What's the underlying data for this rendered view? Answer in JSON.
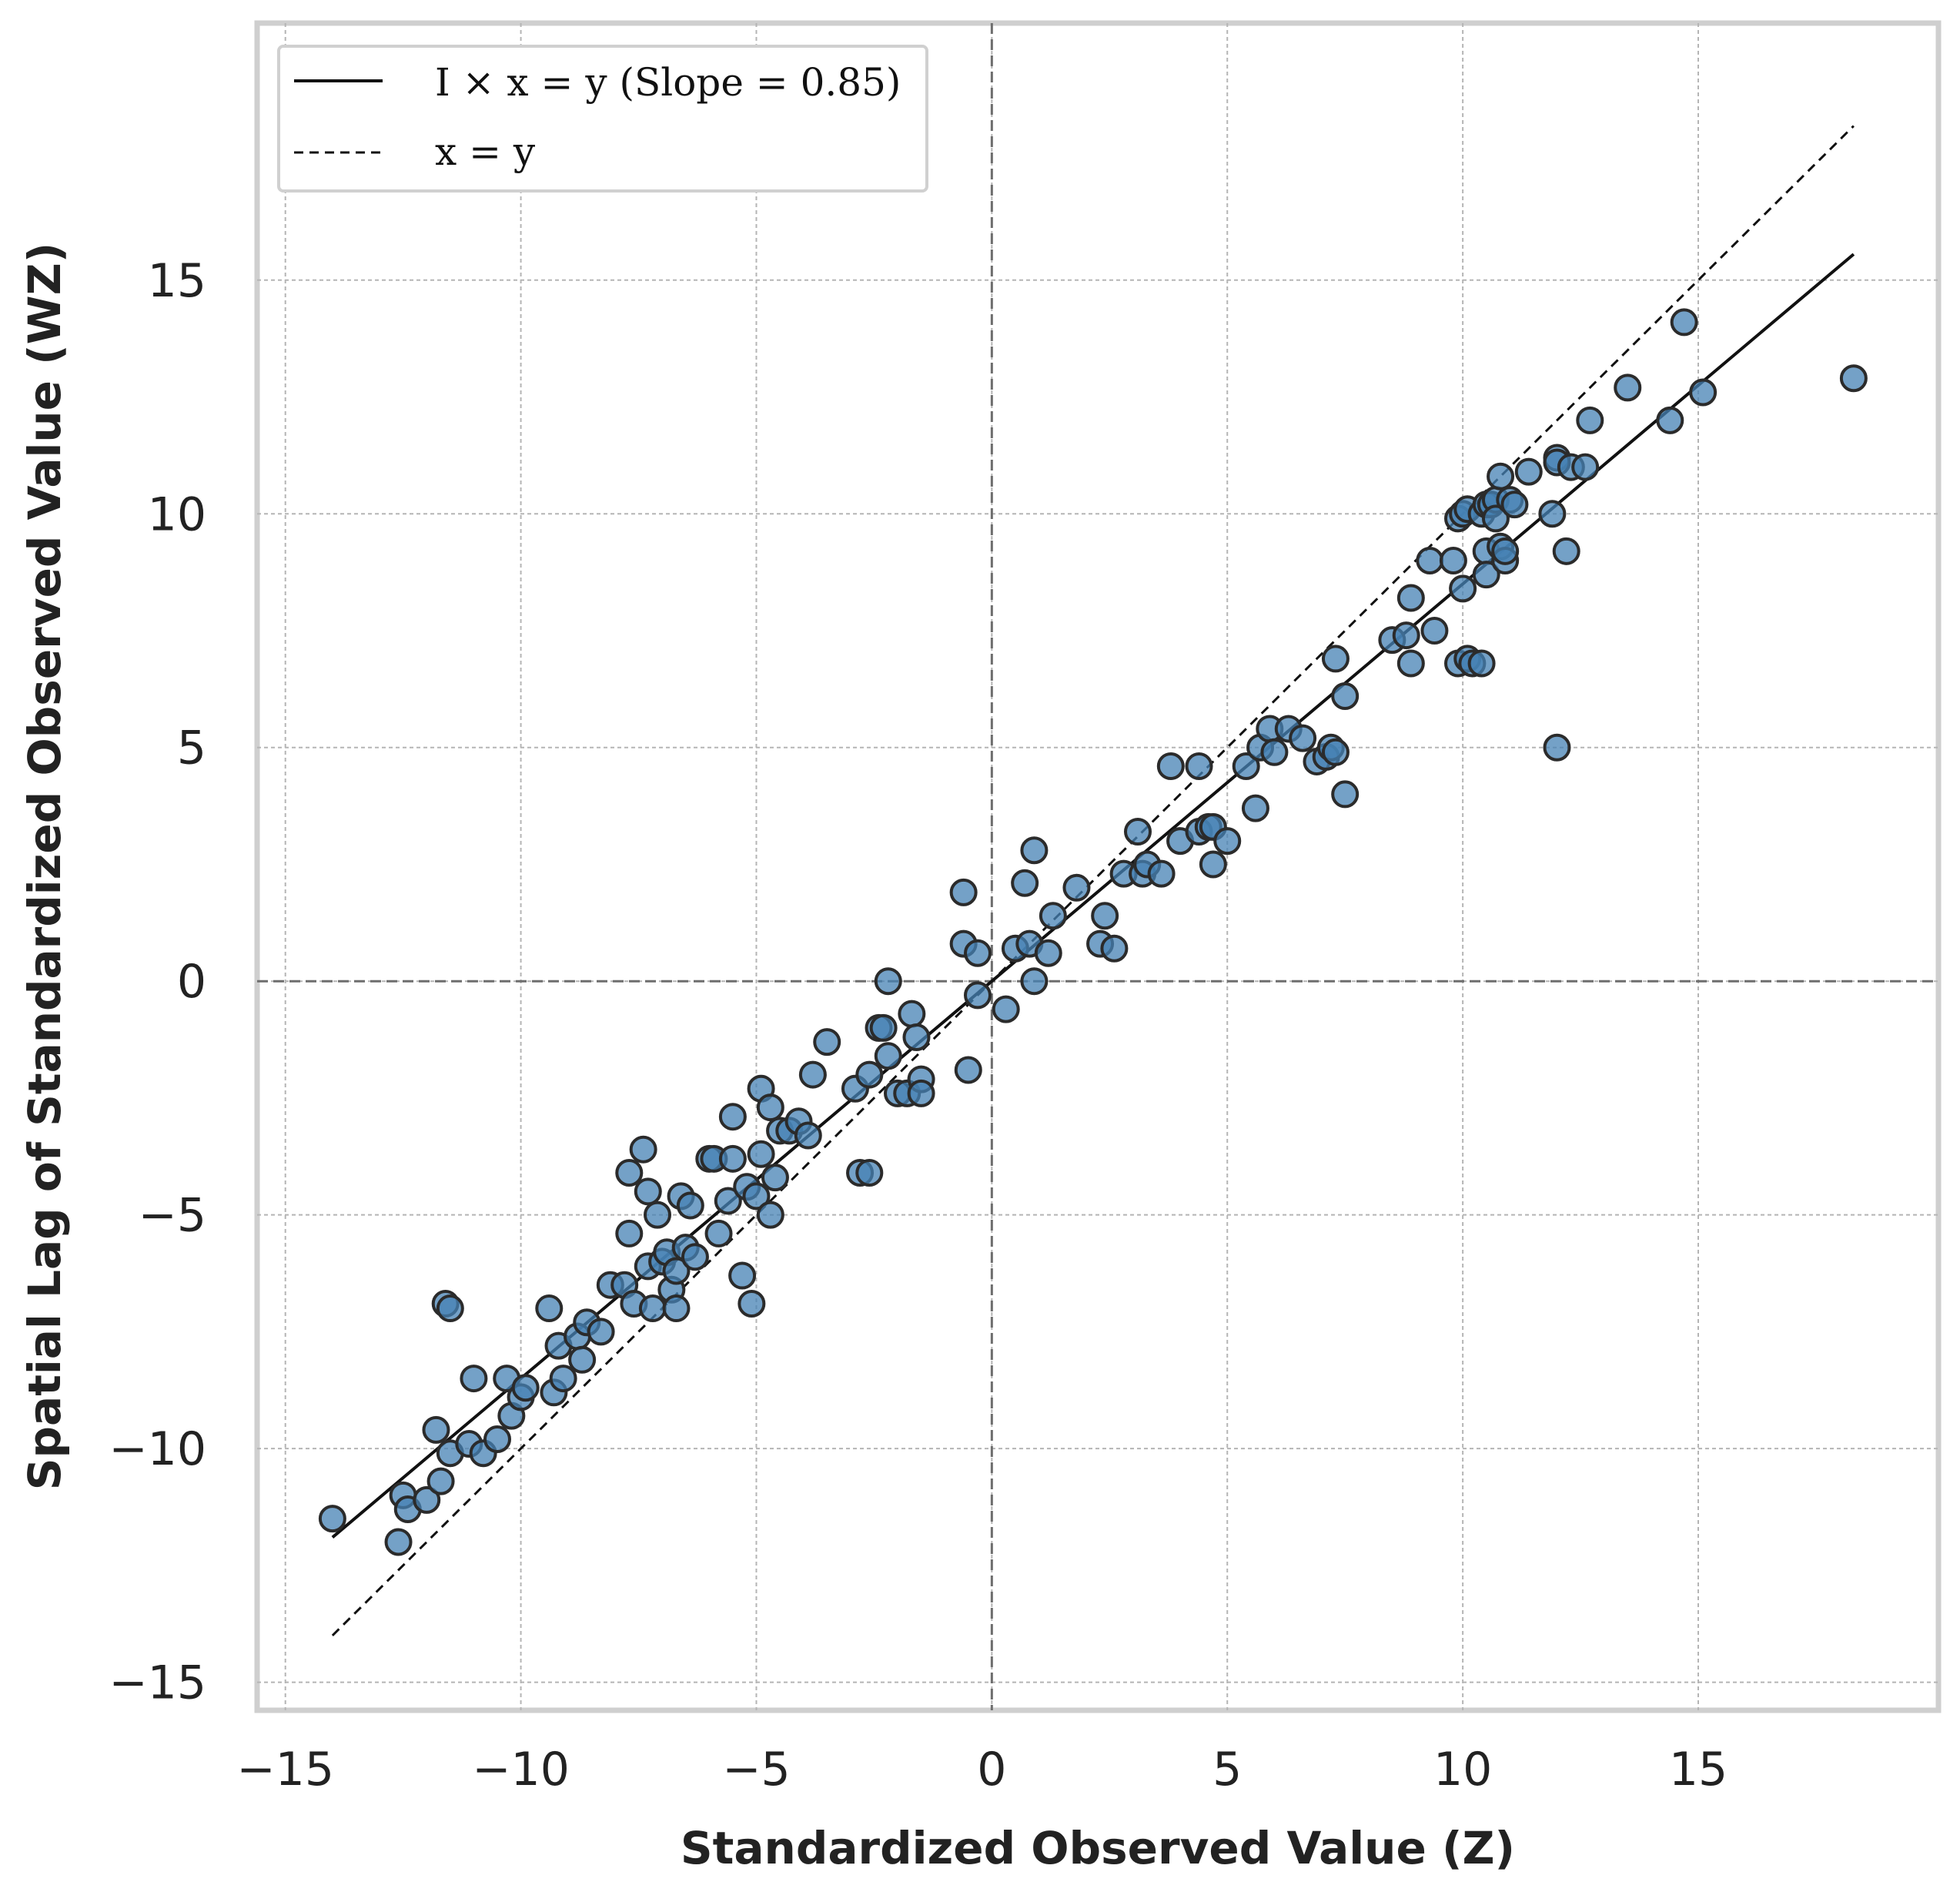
{
  "chart_data": {
    "type": "scatter",
    "xlabel": "Standardized Observed Value (Z)",
    "ylabel": "Spatial Lag of Standardized Observed Value (WZ)",
    "xlim": [
      -15.6,
      20.1
    ],
    "ylim": [
      -15.6,
      20.5
    ],
    "xticks": [
      -15,
      -10,
      -5,
      0,
      5,
      10,
      15
    ],
    "yticks": [
      -15,
      -10,
      -5,
      0,
      5,
      10,
      15
    ],
    "tick_labels_x": [
      "−15",
      "−10",
      "−5",
      "0",
      "5",
      "10",
      "15"
    ],
    "tick_labels_y": [
      "−15",
      "−10",
      "−5",
      "0",
      "5",
      "10",
      "15"
    ],
    "grid": true,
    "legend_position": "top-left",
    "legend": [
      {
        "label": "I × x = y (Slope = 0.85)",
        "style": "solid"
      },
      {
        "label": "x = y",
        "style": "dashed"
      }
    ],
    "lines": [
      {
        "name": "I × x = y (Slope = 0.85)",
        "style": "solid",
        "slope": 0.85,
        "x": [
          -14.0,
          18.3
        ]
      },
      {
        "name": "x = y",
        "style": "dashed",
        "slope": 1.0,
        "x": [
          -14.0,
          18.3
        ]
      }
    ],
    "reference_lines": {
      "x": 0,
      "y": 0
    },
    "points": [
      [
        -14.0,
        -11.5
      ],
      [
        -12.6,
        -12.0
      ],
      [
        -12.5,
        -11.0
      ],
      [
        -12.4,
        -11.3
      ],
      [
        -12.0,
        -11.1
      ],
      [
        -11.8,
        -9.6
      ],
      [
        -11.7,
        -10.7
      ],
      [
        -11.6,
        -6.9
      ],
      [
        -11.5,
        -7.0
      ],
      [
        -11.5,
        -10.1
      ],
      [
        -11.1,
        -9.9
      ],
      [
        -11.0,
        -8.5
      ],
      [
        -10.8,
        -10.1
      ],
      [
        -10.5,
        -9.8
      ],
      [
        -10.3,
        -8.5
      ],
      [
        -10.2,
        -9.3
      ],
      [
        -10.0,
        -8.9
      ],
      [
        -9.9,
        -8.7
      ],
      [
        -9.4,
        -7.0
      ],
      [
        -9.3,
        -8.8
      ],
      [
        -9.2,
        -7.8
      ],
      [
        -9.1,
        -8.5
      ],
      [
        -8.8,
        -7.6
      ],
      [
        -8.7,
        -8.1
      ],
      [
        -8.6,
        -7.3
      ],
      [
        -8.3,
        -7.5
      ],
      [
        -8.1,
        -6.5
      ],
      [
        -7.8,
        -6.5
      ],
      [
        -7.7,
        -5.4
      ],
      [
        -7.7,
        -4.1
      ],
      [
        -7.6,
        -6.9
      ],
      [
        -7.4,
        -3.6
      ],
      [
        -7.3,
        -4.5
      ],
      [
        -7.3,
        -6.1
      ],
      [
        -7.2,
        -7.0
      ],
      [
        -7.1,
        -5.0
      ],
      [
        -7.0,
        -6.0
      ],
      [
        -6.9,
        -5.8
      ],
      [
        -6.8,
        -6.6
      ],
      [
        -6.7,
        -7.0
      ],
      [
        -6.7,
        -6.2
      ],
      [
        -6.6,
        -4.6
      ],
      [
        -6.5,
        -5.7
      ],
      [
        -6.4,
        -4.8
      ],
      [
        -6.3,
        -5.9
      ],
      [
        -6.0,
        -3.8
      ],
      [
        -5.9,
        -3.8
      ],
      [
        -5.8,
        -5.4
      ],
      [
        -5.6,
        -4.7
      ],
      [
        -5.5,
        -2.9
      ],
      [
        -5.5,
        -3.8
      ],
      [
        -5.3,
        -6.3
      ],
      [
        -5.2,
        -4.4
      ],
      [
        -5.1,
        -6.9
      ],
      [
        -5.0,
        -4.6
      ],
      [
        -4.9,
        -2.3
      ],
      [
        -4.9,
        -3.7
      ],
      [
        -4.7,
        -2.7
      ],
      [
        -4.7,
        -5.0
      ],
      [
        -4.6,
        -4.2
      ],
      [
        -4.5,
        -3.2
      ],
      [
        -4.3,
        -3.2
      ],
      [
        -4.1,
        -3.0
      ],
      [
        -3.9,
        -3.3
      ],
      [
        -3.8,
        -2.0
      ],
      [
        -3.5,
        -1.3
      ],
      [
        -2.9,
        -2.3
      ],
      [
        -2.8,
        -4.1
      ],
      [
        -2.6,
        -4.1
      ],
      [
        -2.6,
        -2.0
      ],
      [
        -2.4,
        -1.0
      ],
      [
        -2.3,
        -1.0
      ],
      [
        -2.2,
        0.0
      ],
      [
        -2.2,
        -1.6
      ],
      [
        -2.0,
        -2.4
      ],
      [
        -1.8,
        -2.4
      ],
      [
        -1.7,
        -0.7
      ],
      [
        -1.6,
        -1.2
      ],
      [
        -1.5,
        -2.1
      ],
      [
        -1.5,
        -2.4
      ],
      [
        -0.6,
        1.9
      ],
      [
        -0.6,
        0.8
      ],
      [
        -0.5,
        -1.9
      ],
      [
        -0.3,
        0.6
      ],
      [
        -0.3,
        -0.3
      ],
      [
        0.3,
        -0.6
      ],
      [
        0.5,
        0.7
      ],
      [
        0.7,
        2.1
      ],
      [
        0.8,
        0.8
      ],
      [
        0.9,
        0.0
      ],
      [
        0.9,
        2.8
      ],
      [
        1.2,
        0.6
      ],
      [
        1.3,
        1.4
      ],
      [
        1.8,
        2.0
      ],
      [
        2.3,
        0.8
      ],
      [
        2.4,
        1.4
      ],
      [
        2.6,
        0.7
      ],
      [
        2.8,
        2.3
      ],
      [
        3.1,
        3.2
      ],
      [
        3.2,
        2.3
      ],
      [
        3.3,
        2.5
      ],
      [
        3.6,
        2.3
      ],
      [
        3.8,
        4.6
      ],
      [
        4.0,
        3.0
      ],
      [
        4.4,
        4.6
      ],
      [
        4.4,
        3.2
      ],
      [
        4.6,
        3.3
      ],
      [
        4.7,
        2.5
      ],
      [
        4.7,
        3.3
      ],
      [
        5.0,
        3.0
      ],
      [
        5.4,
        4.6
      ],
      [
        5.6,
        3.7
      ],
      [
        5.7,
        5.0
      ],
      [
        5.9,
        5.4
      ],
      [
        6.0,
        4.9
      ],
      [
        6.3,
        5.4
      ],
      [
        6.6,
        5.2
      ],
      [
        6.9,
        4.7
      ],
      [
        7.1,
        4.8
      ],
      [
        7.2,
        5.0
      ],
      [
        7.3,
        4.9
      ],
      [
        7.3,
        6.9
      ],
      [
        7.5,
        6.1
      ],
      [
        7.5,
        4.0
      ],
      [
        8.5,
        7.3
      ],
      [
        8.8,
        7.4
      ],
      [
        8.9,
        6.8
      ],
      [
        8.9,
        8.2
      ],
      [
        9.3,
        9.0
      ],
      [
        9.4,
        7.5
      ],
      [
        9.8,
        9.0
      ],
      [
        9.9,
        6.8
      ],
      [
        9.9,
        9.9
      ],
      [
        10.0,
        8.4
      ],
      [
        10.0,
        10.0
      ],
      [
        10.1,
        10.1
      ],
      [
        10.1,
        6.9
      ],
      [
        10.2,
        6.8
      ],
      [
        10.4,
        10.0
      ],
      [
        10.4,
        6.8
      ],
      [
        10.5,
        9.2
      ],
      [
        10.5,
        8.7
      ],
      [
        10.5,
        10.2
      ],
      [
        10.6,
        10.2
      ],
      [
        10.7,
        10.3
      ],
      [
        10.7,
        9.9
      ],
      [
        10.8,
        9.3
      ],
      [
        10.8,
        10.8
      ],
      [
        10.9,
        9.0
      ],
      [
        10.9,
        9.2
      ],
      [
        11.0,
        10.3
      ],
      [
        11.1,
        10.2
      ],
      [
        11.4,
        10.9
      ],
      [
        11.9,
        10.0
      ],
      [
        12.0,
        11.2
      ],
      [
        12.0,
        11.1
      ],
      [
        12.0,
        5.0
      ],
      [
        12.2,
        9.2
      ],
      [
        12.3,
        11.0
      ],
      [
        12.6,
        11.0
      ],
      [
        12.7,
        12.0
      ],
      [
        13.5,
        12.7
      ],
      [
        14.4,
        12.0
      ],
      [
        14.7,
        14.1
      ],
      [
        15.1,
        12.6
      ],
      [
        18.3,
        12.9
      ]
    ]
  }
}
